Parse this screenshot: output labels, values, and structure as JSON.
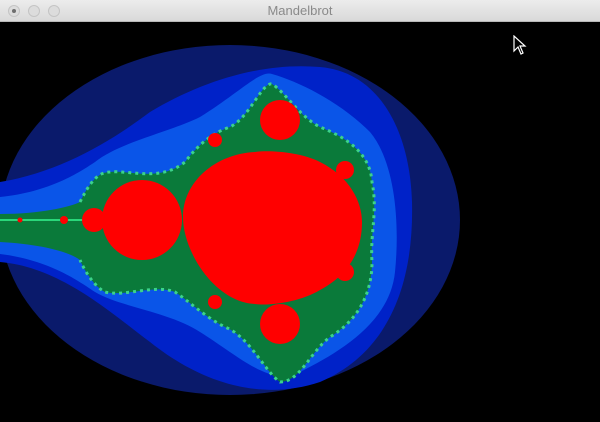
{
  "window": {
    "title": "Mandelbrot",
    "buttons": [
      "close",
      "minimize",
      "zoom"
    ]
  },
  "fractal": {
    "colors": {
      "background": "#000000",
      "outer_band": "#0a1a6b",
      "mid_band": "#0022c8",
      "inner_band": "#0a55e8",
      "edge_band": "#0a7a3a",
      "filament": "#3bd38a",
      "set": "#ff0000"
    }
  },
  "cursor": {
    "icon": "arrow-pointer-icon"
  }
}
